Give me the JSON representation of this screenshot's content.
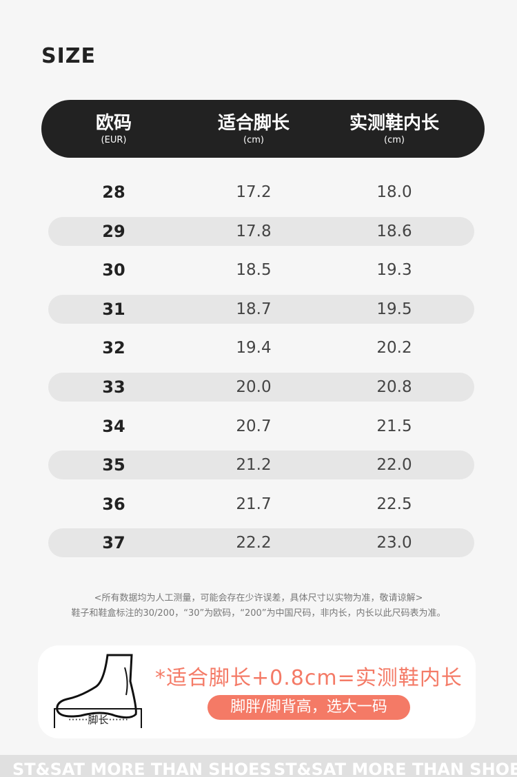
{
  "title": "SIZE",
  "header": {
    "columns": [
      {
        "main": "欧码",
        "sub": "(EUR)"
      },
      {
        "main": "适合脚长",
        "sub": "(cm)"
      },
      {
        "main": "实测鞋内长",
        "sub": "(cm)"
      }
    ]
  },
  "rows": [
    [
      "28",
      "17.2",
      "18.0"
    ],
    [
      "29",
      "17.8",
      "18.6"
    ],
    [
      "30",
      "18.5",
      "19.3"
    ],
    [
      "31",
      "18.7",
      "19.5"
    ],
    [
      "32",
      "19.4",
      "20.2"
    ],
    [
      "33",
      "20.0",
      "20.8"
    ],
    [
      "34",
      "20.7",
      "21.5"
    ],
    [
      "35",
      "21.2",
      "22.0"
    ],
    [
      "36",
      "21.7",
      "22.5"
    ],
    [
      "37",
      "22.2",
      "23.0"
    ]
  ],
  "notes": [
    "<所有数据均为人工测量，可能会存在少许误差，具体尺寸以实物为准，敬请谅解>",
    "鞋子和鞋盒标注的30/200，“30”为欧码，“200”为中国尺码，非内长，内长以此尺码表为准。"
  ],
  "tip": {
    "foot_label": "······脚长······",
    "formula": "*适合脚长+0.8cm=实测鞋内长",
    "advice": "脚胖/脚背高，选大一码"
  },
  "band": [
    "ST&SAT  MORE  THAN  SHOES",
    "ST&SAT  MORE  THAN  SHOES"
  ],
  "colors": {
    "accent": "#f47a66",
    "header": "#222222",
    "stripe": "#e6e6e6"
  }
}
